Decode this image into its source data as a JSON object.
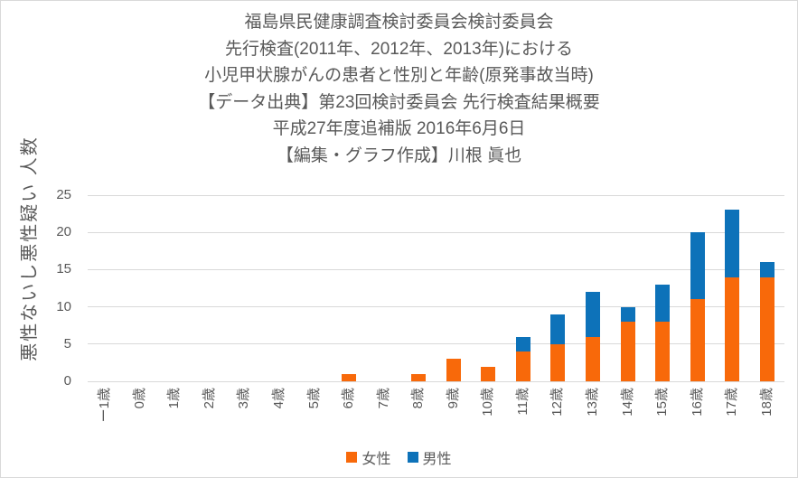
{
  "title_lines": [
    "福島県民健康調査検討委員会検討委員会",
    "先行検査(2011年、2012年、2013年)における",
    "小児甲状腺がんの患者と性別と年齢(原発事故当時)",
    "【データ出典】第23回検討委員会 先行検査結果概要",
    "平成27年度追補版 2016年6月6日",
    "【編集・グラフ作成】川根 眞也"
  ],
  "colors": {
    "female": "#F8690A",
    "male": "#0D72B9",
    "text": "#595959",
    "gridline": "#D9D9D9",
    "border": "#D9D9D9"
  },
  "chart_data": {
    "type": "bar",
    "stacked": true,
    "ylabel": "悪性ないし悪性疑い 人数",
    "xlabel": "",
    "categories": [
      "ー1歳",
      "0歳",
      "1歳",
      "2歳",
      "3歳",
      "4歳",
      "5歳",
      "6歳",
      "7歳",
      "8歳",
      "9歳",
      "10歳",
      "11歳",
      "12歳",
      "13歳",
      "14歳",
      "15歳",
      "16歳",
      "17歳",
      "18歳"
    ],
    "series": [
      {
        "name": "女性",
        "color": "#F8690A",
        "values": [
          0,
          0,
          0,
          0,
          0,
          0,
          0,
          1,
          0,
          1,
          3,
          2,
          4,
          5,
          6,
          8,
          8,
          11,
          14,
          14
        ]
      },
      {
        "name": "男性",
        "color": "#0D72B9",
        "values": [
          0,
          0,
          0,
          0,
          0,
          0,
          0,
          0,
          0,
          0,
          0,
          0,
          2,
          4,
          6,
          2,
          5,
          9,
          9,
          2
        ]
      }
    ],
    "yticks": [
      0,
      5,
      10,
      15,
      20,
      25
    ],
    "ylim": [
      0,
      25
    ],
    "grid": "horizontal",
    "legend_position": "bottom"
  }
}
